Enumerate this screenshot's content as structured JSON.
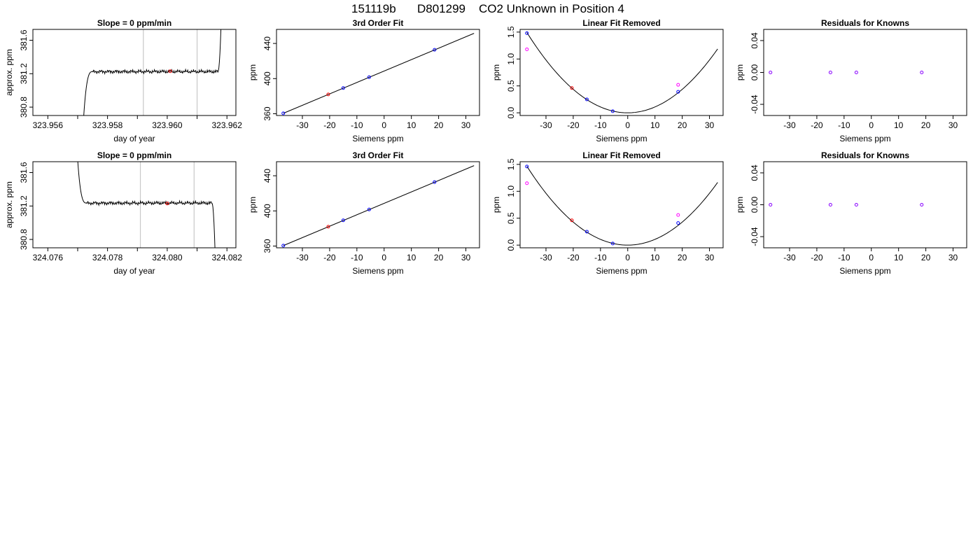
{
  "figure_title": {
    "id": "151119b",
    "tank": "D801299",
    "description": "CO2 Unknown in Position  4"
  },
  "colors": {
    "known": "#0000ff",
    "unknown": "#ff0000",
    "unknown_linear": "#ff00ff",
    "residual": "#8800ff",
    "window": "#c8c8c8",
    "trace": "#000000"
  },
  "chart_data": [
    {
      "type": "line",
      "row": 0,
      "col": 0,
      "title": "Slope =  0  ppm/min",
      "xlabel": "day of year",
      "ylabel": "approx. ppm",
      "xlim": [
        323.9555,
        323.9623
      ],
      "ylim": [
        380.7,
        381.73
      ],
      "xticks": [
        "323.956",
        "323.958",
        "323.960",
        "323.962"
      ],
      "xtick_values": [
        323.956,
        323.958,
        323.96,
        323.962
      ],
      "yticks": [
        "380.8",
        "381.2",
        "381.6"
      ],
      "ytick_values": [
        380.8,
        381.2,
        381.6
      ],
      "vlines": [
        323.9592,
        323.961
      ],
      "trace": {
        "x_start": 323.9572,
        "x_end": 323.9618,
        "settle_from": 380.68,
        "plateau": 381.225,
        "rise_to": 381.75,
        "settle_end": 323.9575,
        "plateau_end": 323.9617
      },
      "marker": {
        "x": 323.9601,
        "y": 381.23,
        "series": "unknown"
      }
    },
    {
      "type": "scatter",
      "row": 0,
      "col": 1,
      "title": "3rd Order Fit",
      "xlabel": "Siemens ppm",
      "ylabel": "ppm",
      "xlim": [
        -39.5,
        35
      ],
      "ylim": [
        358,
        456
      ],
      "xticks": [
        "-30",
        "-20",
        "-10",
        "0",
        "10",
        "20",
        "30"
      ],
      "xtick_values": [
        -30,
        -20,
        -10,
        0,
        10,
        20,
        30
      ],
      "yticks": [
        "360",
        "400",
        "440"
      ],
      "ytick_values": [
        360,
        400,
        440
      ],
      "fit_line": {
        "x": [
          -37,
          33
        ],
        "y": [
          360.5,
          451.5
        ]
      },
      "points": [
        {
          "x": -37,
          "y": 360.5,
          "series": "known"
        },
        {
          "x": -20.5,
          "y": 382,
          "series": "unknown"
        },
        {
          "x": -15,
          "y": 389.3,
          "series": "known"
        },
        {
          "x": -5.5,
          "y": 401.6,
          "series": "known"
        },
        {
          "x": 18.5,
          "y": 432.8,
          "series": "known"
        }
      ]
    },
    {
      "type": "scatter",
      "row": 0,
      "col": 2,
      "title": "Linear Fit Removed",
      "xlabel": "Siemens ppm",
      "ylabel": "ppm",
      "xlim": [
        -39.5,
        35
      ],
      "ylim": [
        -0.05,
        1.55
      ],
      "xticks": [
        "-30",
        "-20",
        "-10",
        "0",
        "10",
        "20",
        "30"
      ],
      "xtick_values": [
        -30,
        -20,
        -10,
        0,
        10,
        20,
        30
      ],
      "yticks": [
        "0.0",
        "0.5",
        "1.0",
        "1.5"
      ],
      "ytick_values": [
        0,
        0.5,
        1.0,
        1.5
      ],
      "curve": {
        "x": [
          -37,
          33
        ],
        "a": 0.00109,
        "h": 0
      },
      "points": [
        {
          "x": -37,
          "y": 1.48,
          "series": "known"
        },
        {
          "x": -37,
          "y": 1.18,
          "series": "unknown_linear"
        },
        {
          "x": -20.5,
          "y": 0.46,
          "series": "unknown"
        },
        {
          "x": -15,
          "y": 0.25,
          "series": "known"
        },
        {
          "x": -5.5,
          "y": 0.03,
          "series": "known"
        },
        {
          "x": 18.5,
          "y": 0.39,
          "series": "known"
        },
        {
          "x": 18.5,
          "y": 0.52,
          "series": "unknown_linear"
        }
      ]
    },
    {
      "type": "scatter",
      "row": 0,
      "col": 3,
      "title": "Residuals for Knowns",
      "xlabel": "Siemens ppm",
      "ylabel": "ppm",
      "xlim": [
        -39.5,
        35
      ],
      "ylim": [
        -0.054,
        0.054
      ],
      "xticks": [
        "-30",
        "-20",
        "-10",
        "0",
        "10",
        "20",
        "30"
      ],
      "xtick_values": [
        -30,
        -20,
        -10,
        0,
        10,
        20,
        30
      ],
      "yticks": [
        "-0.04",
        "0.00",
        "0.04"
      ],
      "ytick_values": [
        -0.04,
        0,
        0.04
      ],
      "points": [
        {
          "x": -37,
          "y": 0,
          "series": "residual"
        },
        {
          "x": -15,
          "y": 0,
          "series": "residual"
        },
        {
          "x": -5.5,
          "y": 0,
          "series": "residual"
        },
        {
          "x": 18.5,
          "y": 0,
          "series": "residual"
        }
      ]
    },
    {
      "type": "line",
      "row": 1,
      "col": 0,
      "title": "Slope =  0  ppm/min",
      "xlabel": "day of year",
      "ylabel": "approx. ppm",
      "xlim": [
        324.0755,
        324.0823
      ],
      "ylim": [
        380.7,
        381.73
      ],
      "xticks": [
        "324.076",
        "324.078",
        "324.080",
        "324.082"
      ],
      "xtick_values": [
        324.076,
        324.078,
        324.08,
        324.082
      ],
      "yticks": [
        "380.8",
        "381.2",
        "381.6"
      ],
      "ytick_values": [
        380.8,
        381.2,
        381.6
      ],
      "vlines": [
        324.0791,
        324.0809
      ],
      "trace": {
        "x_start": 324.077,
        "x_end": 324.0816,
        "settle_from": 381.75,
        "plateau": 381.235,
        "rise_to": 380.68,
        "settle_end": 324.0773,
        "plateau_end": 324.0815
      },
      "marker": {
        "x": 324.08,
        "y": 381.23,
        "series": "unknown"
      }
    },
    {
      "type": "scatter",
      "row": 1,
      "col": 1,
      "title": "3rd Order Fit",
      "xlabel": "Siemens ppm",
      "ylabel": "ppm",
      "xlim": [
        -39.5,
        35
      ],
      "ylim": [
        358,
        456
      ],
      "xticks": [
        "-30",
        "-20",
        "-10",
        "0",
        "10",
        "20",
        "30"
      ],
      "xtick_values": [
        -30,
        -20,
        -10,
        0,
        10,
        20,
        30
      ],
      "yticks": [
        "360",
        "400",
        "440"
      ],
      "ytick_values": [
        360,
        400,
        440
      ],
      "fit_line": {
        "x": [
          -37,
          33
        ],
        "y": [
          360.5,
          451.5
        ]
      },
      "points": [
        {
          "x": -37,
          "y": 360.5,
          "series": "known"
        },
        {
          "x": -20.5,
          "y": 382,
          "series": "unknown"
        },
        {
          "x": -15,
          "y": 389.3,
          "series": "known"
        },
        {
          "x": -5.5,
          "y": 401.6,
          "series": "known"
        },
        {
          "x": 18.5,
          "y": 432.8,
          "series": "known"
        }
      ]
    },
    {
      "type": "scatter",
      "row": 1,
      "col": 2,
      "title": "Linear Fit Removed",
      "xlabel": "Siemens ppm",
      "ylabel": "ppm",
      "xlim": [
        -39.5,
        35
      ],
      "ylim": [
        -0.05,
        1.55
      ],
      "xticks": [
        "-30",
        "-20",
        "-10",
        "0",
        "10",
        "20",
        "30"
      ],
      "xtick_values": [
        -30,
        -20,
        -10,
        0,
        10,
        20,
        30
      ],
      "yticks": [
        "0.0",
        "0.5",
        "1.0",
        "1.5"
      ],
      "ytick_values": [
        0,
        0.5,
        1.0,
        1.5
      ],
      "curve": {
        "x": [
          -37,
          33
        ],
        "a": 0.00107,
        "h": 0
      },
      "points": [
        {
          "x": -37,
          "y": 1.46,
          "series": "known"
        },
        {
          "x": -37,
          "y": 1.15,
          "series": "unknown_linear"
        },
        {
          "x": -20.5,
          "y": 0.46,
          "series": "unknown"
        },
        {
          "x": -15,
          "y": 0.25,
          "series": "known"
        },
        {
          "x": -5.5,
          "y": 0.03,
          "series": "known"
        },
        {
          "x": 18.5,
          "y": 0.41,
          "series": "known"
        },
        {
          "x": 18.5,
          "y": 0.56,
          "series": "unknown_linear"
        }
      ]
    },
    {
      "type": "scatter",
      "row": 1,
      "col": 3,
      "title": "Residuals for Knowns",
      "xlabel": "Siemens ppm",
      "ylabel": "ppm",
      "xlim": [
        -39.5,
        35
      ],
      "ylim": [
        -0.054,
        0.054
      ],
      "xticks": [
        "-30",
        "-20",
        "-10",
        "0",
        "10",
        "20",
        "30"
      ],
      "xtick_values": [
        -30,
        -20,
        -10,
        0,
        10,
        20,
        30
      ],
      "yticks": [
        "-0.04",
        "0.00",
        "0.04"
      ],
      "ytick_values": [
        -0.04,
        0,
        0.04
      ],
      "points": [
        {
          "x": -37,
          "y": 0,
          "series": "residual"
        },
        {
          "x": -15,
          "y": 0,
          "series": "residual"
        },
        {
          "x": -5.5,
          "y": 0,
          "series": "residual"
        },
        {
          "x": 18.5,
          "y": 0,
          "series": "residual"
        }
      ]
    }
  ]
}
